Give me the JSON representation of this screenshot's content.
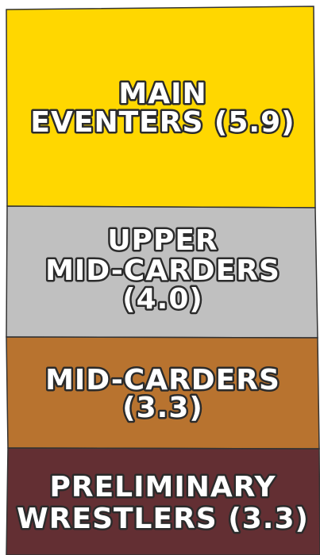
{
  "tiers": [
    {
      "lines": [
        "MAIN",
        "EVENTERS (5.9)"
      ],
      "color": "#ffd700"
    },
    {
      "lines": [
        "UPPER",
        "MID-CARDERS",
        "(4.0)"
      ],
      "color": "#c0c0c0"
    },
    {
      "lines": [
        "MID-CARDERS",
        "(3.3)"
      ],
      "color": "#b8732f"
    },
    {
      "lines": [
        "PRELIMINARY",
        "WRESTLERS (3.3)"
      ],
      "color": "#632f33"
    }
  ]
}
